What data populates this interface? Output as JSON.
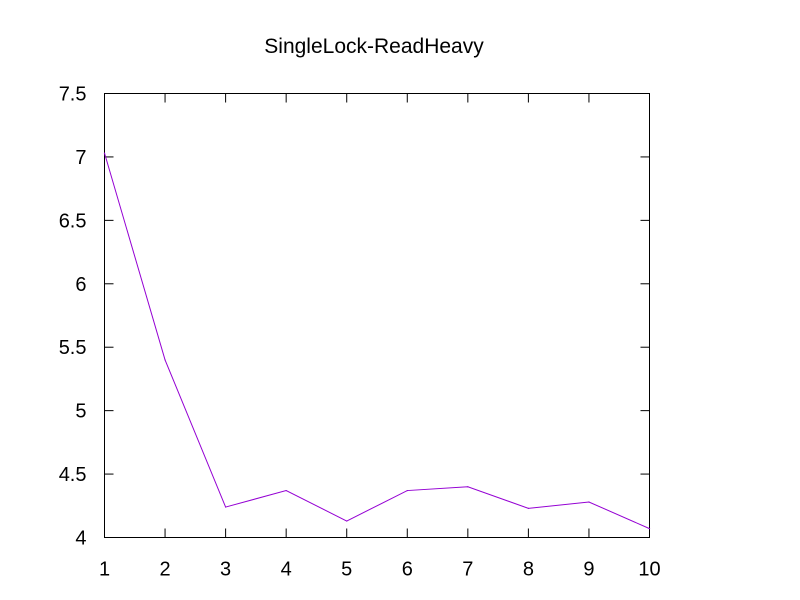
{
  "chart_data": {
    "type": "line",
    "title": "SingleLock-ReadHeavy",
    "xlabel": "",
    "ylabel": "",
    "x": [
      1,
      2,
      3,
      4,
      5,
      6,
      7,
      8,
      9,
      10
    ],
    "xlim": [
      1,
      10
    ],
    "ylim": [
      4,
      7.5
    ],
    "xticks": [
      "1",
      "2",
      "3",
      "4",
      "5",
      "6",
      "7",
      "8",
      "9",
      "10"
    ],
    "yticks": [
      "4",
      "4.5",
      "5",
      "5.5",
      "6",
      "6.5",
      "7",
      "7.5"
    ],
    "grid": false,
    "legend": "none",
    "series": [
      {
        "color": "#9400d3",
        "values": [
          7.03,
          5.4,
          4.24,
          4.37,
          4.13,
          4.37,
          4.4,
          4.23,
          4.28,
          4.07
        ]
      }
    ]
  }
}
